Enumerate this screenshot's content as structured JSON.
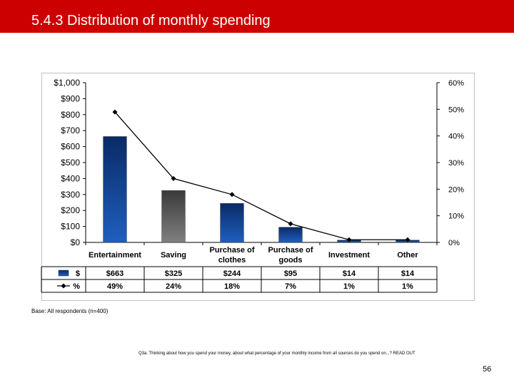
{
  "slide": {
    "title": "5.4.3 Distribution of monthly spending",
    "base_note": "Base: All respondents (n=400)",
    "question_note": "Q3a. Thinking about how you spend your money, about what percentage of your monthly income from all sources do you spend on...? READ OUT",
    "page_number": "56",
    "accent_color": "#cc0000"
  },
  "chart_data": {
    "type": "bar",
    "categories": [
      "Entertainment",
      "Saving",
      "Purchase of clothes",
      "Purchase of goods",
      "Investment",
      "Other"
    ],
    "category_lines": [
      [
        "Entertainment"
      ],
      [
        "Saving"
      ],
      [
        "Purchase of",
        "clothes"
      ],
      [
        "Purchase of",
        "goods"
      ],
      [
        "Investment"
      ],
      [
        "Other"
      ]
    ],
    "series": [
      {
        "name": "$",
        "type": "bar",
        "axis": "left",
        "values": [
          663,
          325,
          244,
          95,
          14,
          14
        ],
        "labels": [
          "$663",
          "$325",
          "$244",
          "$95",
          "$14",
          "$14"
        ]
      },
      {
        "name": "%",
        "type": "line",
        "axis": "right",
        "values": [
          49,
          24,
          18,
          7,
          1,
          1
        ],
        "labels": [
          "49%",
          "24%",
          "18%",
          "7%",
          "1%",
          "1%"
        ]
      }
    ],
    "bar_colors": [
      "#1f5fbf",
      "#808080",
      "#1f5fbf",
      "#1f5fbf",
      "#1f5fbf",
      "#1f5fbf"
    ],
    "y_left": {
      "min": 0,
      "max": 1000,
      "ticks": [
        "$0",
        "$100",
        "$200",
        "$300",
        "$400",
        "$500",
        "$600",
        "$700",
        "$800",
        "$900",
        "$1,000"
      ]
    },
    "y_right": {
      "min": 0,
      "max": 60,
      "ticks": [
        "0%",
        "10%",
        "20%",
        "30%",
        "40%",
        "50%",
        "60%"
      ]
    },
    "grid": false,
    "legend": "data table below chart"
  }
}
